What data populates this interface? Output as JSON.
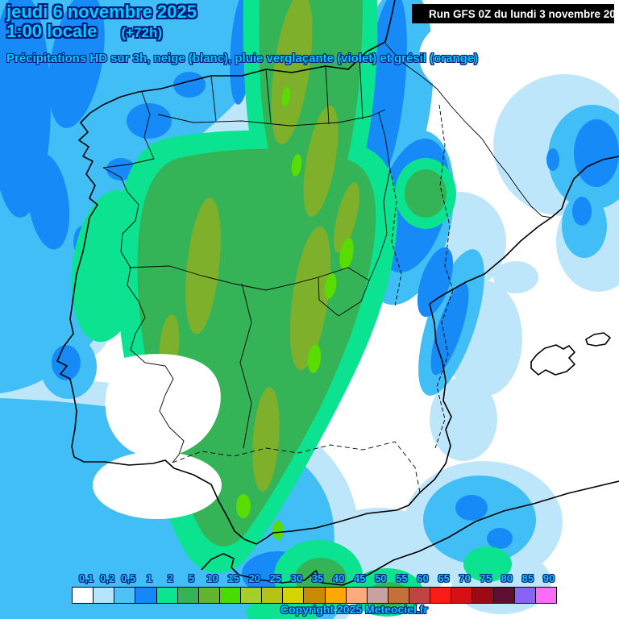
{
  "header": {
    "date_line": "jeudi 6 novembre 2025",
    "time_line": "1:00 locale",
    "offset": "(+72h)",
    "subtitle": "Précipitations HD sur 3h, neige (blanc), pluie verglaçante (violet) et grésil (orange)",
    "run_info": "Run GFS 0Z du lundi 3 novembre 2025",
    "text_color": "#00ccff",
    "outline_color": "#001878",
    "run_box_bg": "#000000",
    "run_box_fg": "#ffffff"
  },
  "legend": {
    "values": [
      "0,1",
      "0,2",
      "0,5",
      "1",
      "2",
      "5",
      "10",
      "15",
      "20",
      "25",
      "30",
      "35",
      "40",
      "45",
      "50",
      "55",
      "60",
      "65",
      "70",
      "75",
      "80",
      "85",
      "90"
    ],
    "colors": [
      "#FFFFFF",
      "#B5E5FB",
      "#4EC1F5",
      "#1488F8",
      "#0AE591",
      "#35B457",
      "#63B52F",
      "#49DC00",
      "#A5CE29",
      "#B5C315",
      "#D6D300",
      "#C98A00",
      "#FFA702",
      "#FCAB7C",
      "#C8A2A0",
      "#C4703B",
      "#BF4545",
      "#FB1B14",
      "#D51117",
      "#9C0B13",
      "#5F0D33",
      "#8A63F6",
      "#FB6BF5"
    ]
  },
  "map_palette": {
    "pale_blue": "#BEE6FB",
    "sky_blue": "#41BEF5",
    "blue": "#168BF8",
    "mint_green": "#0CE391",
    "mid_green": "#35B457",
    "olive_green": "#7FB02B",
    "chartreuse": "#59DC00",
    "coastline": "#000000"
  },
  "footer": {
    "copyright": "Copyright 2025 Meteociel.fr"
  }
}
